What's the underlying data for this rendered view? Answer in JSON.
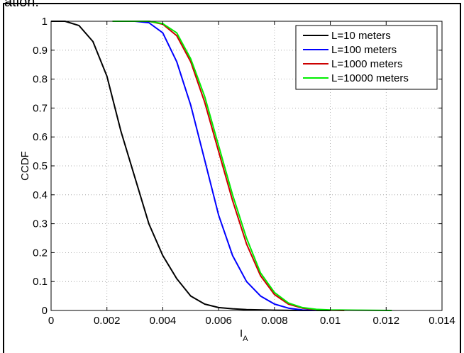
{
  "cropped_text": "ation.",
  "chart_data": {
    "type": "line",
    "title": "",
    "xlabel": "I",
    "xlabel_subscript": "A",
    "ylabel": "CCDF",
    "xlim": [
      0,
      0.014
    ],
    "ylim": [
      0,
      1
    ],
    "xticks": [
      "0",
      "0.002",
      "0.004",
      "0.006",
      "0.008",
      "0.01",
      "0.012",
      "0.014"
    ],
    "yticks": [
      "0",
      "0.1",
      "0.2",
      "0.3",
      "0.4",
      "0.5",
      "0.6",
      "0.7",
      "0.8",
      "0.9",
      "1"
    ],
    "grid": true,
    "legend_position": "top-right",
    "series": [
      {
        "name": "L=10 meters",
        "color": "#000000",
        "x": [
          0,
          0.0005,
          0.001,
          0.0015,
          0.002,
          0.0025,
          0.003,
          0.0035,
          0.004,
          0.0045,
          0.005,
          0.0055,
          0.006,
          0.0065,
          0.007,
          0.008,
          0.009,
          0.01
        ],
        "y": [
          1,
          1,
          0.985,
          0.93,
          0.81,
          0.62,
          0.46,
          0.3,
          0.19,
          0.11,
          0.05,
          0.022,
          0.01,
          0.006,
          0.003,
          0.001,
          0,
          0
        ]
      },
      {
        "name": "L=100 meters",
        "color": "#0000ff",
        "x": [
          0.0022,
          0.003,
          0.0035,
          0.004,
          0.0045,
          0.005,
          0.0055,
          0.006,
          0.0065,
          0.007,
          0.0075,
          0.008,
          0.0085,
          0.009,
          0.0095
        ],
        "y": [
          1,
          1,
          0.995,
          0.96,
          0.86,
          0.71,
          0.52,
          0.33,
          0.19,
          0.1,
          0.05,
          0.022,
          0.008,
          0.002,
          0
        ]
      },
      {
        "name": "L=1000 meters",
        "color": "#cc0000",
        "x": [
          0.0022,
          0.003,
          0.0035,
          0.004,
          0.0045,
          0.005,
          0.0055,
          0.006,
          0.0065,
          0.007,
          0.0075,
          0.008,
          0.0085,
          0.009,
          0.0095,
          0.01,
          0.0105
        ],
        "y": [
          1,
          1,
          1,
          0.99,
          0.95,
          0.86,
          0.72,
          0.55,
          0.38,
          0.23,
          0.12,
          0.055,
          0.022,
          0.008,
          0.003,
          0.001,
          0
        ]
      },
      {
        "name": "L=10000 meters",
        "color": "#00ee00",
        "x": [
          0.0022,
          0.003,
          0.0035,
          0.004,
          0.0045,
          0.005,
          0.0055,
          0.006,
          0.0065,
          0.007,
          0.0075,
          0.008,
          0.0085,
          0.009,
          0.0095,
          0.01,
          0.011,
          0.0122
        ],
        "y": [
          1,
          1,
          1,
          0.992,
          0.96,
          0.87,
          0.74,
          0.57,
          0.4,
          0.25,
          0.13,
          0.062,
          0.026,
          0.01,
          0.004,
          0.002,
          0.001,
          0
        ]
      }
    ]
  }
}
